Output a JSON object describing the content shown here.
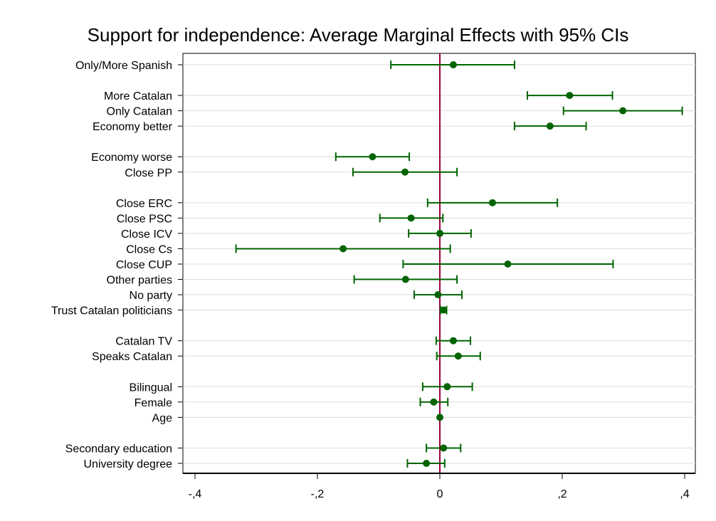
{
  "chart_data": {
    "type": "scatter",
    "title": "Support for independence: Average Marginal Effects with 95% CIs",
    "xlabel": "",
    "ylabel": "",
    "xlim": [
      -0.4,
      0.4
    ],
    "x_ticks": [
      {
        "value": -0.4,
        "label": "-,4"
      },
      {
        "value": -0.2,
        "label": "-,2"
      },
      {
        "value": 0,
        "label": "0"
      },
      {
        "value": 0.2,
        "label": ",2"
      },
      {
        "value": 0.4,
        "label": ",4"
      }
    ],
    "reference_line": 0,
    "grid": "horizontal",
    "colors": {
      "marker": "#006400",
      "reference": "#a0003c",
      "grid": "#dcdcdc",
      "axis": "#000000"
    },
    "rows": [
      {
        "label": "Only/More Spanish",
        "estimate": 0.022,
        "lower": -0.08,
        "upper": 0.122,
        "pos": 0
      },
      {
        "label": "More Catalan",
        "estimate": 0.212,
        "lower": 0.143,
        "upper": 0.282,
        "pos": 2
      },
      {
        "label": "Only Catalan",
        "estimate": 0.299,
        "lower": 0.202,
        "upper": 0.396,
        "pos": 3
      },
      {
        "label": "Economy better",
        "estimate": 0.18,
        "lower": 0.122,
        "upper": 0.239,
        "pos": 4
      },
      {
        "label": "Economy worse",
        "estimate": -0.11,
        "lower": -0.17,
        "upper": -0.05,
        "pos": 6
      },
      {
        "label": "Close PP",
        "estimate": -0.057,
        "lower": -0.142,
        "upper": 0.028,
        "pos": 7
      },
      {
        "label": "Close ERC",
        "estimate": 0.086,
        "lower": -0.02,
        "upper": 0.192,
        "pos": 9
      },
      {
        "label": "Close PSC",
        "estimate": -0.047,
        "lower": -0.098,
        "upper": 0.005,
        "pos": 10
      },
      {
        "label": "Close ICV",
        "estimate": 0.0,
        "lower": -0.051,
        "upper": 0.051,
        "pos": 11
      },
      {
        "label": "Close Cs",
        "estimate": -0.158,
        "lower": -0.333,
        "upper": 0.017,
        "pos": 12
      },
      {
        "label": "Close CUP",
        "estimate": 0.111,
        "lower": -0.06,
        "upper": 0.283,
        "pos": 13
      },
      {
        "label": "Other parties",
        "estimate": -0.056,
        "lower": -0.14,
        "upper": 0.028,
        "pos": 14
      },
      {
        "label": "No party",
        "estimate": -0.003,
        "lower": -0.042,
        "upper": 0.036,
        "pos": 15
      },
      {
        "label": "Trust Catalan politicians",
        "estimate": 0.006,
        "lower": 0.001,
        "upper": 0.011,
        "pos": 16
      },
      {
        "label": "Catalan TV",
        "estimate": 0.022,
        "lower": -0.006,
        "upper": 0.05,
        "pos": 18
      },
      {
        "label": "Speaks Catalan",
        "estimate": 0.03,
        "lower": -0.005,
        "upper": 0.066,
        "pos": 19
      },
      {
        "label": "Bilingual",
        "estimate": 0.012,
        "lower": -0.028,
        "upper": 0.053,
        "pos": 21
      },
      {
        "label": "Female",
        "estimate": -0.01,
        "lower": -0.032,
        "upper": 0.013,
        "pos": 22
      },
      {
        "label": "Age",
        "estimate": 0.0,
        "lower": 0.0,
        "upper": 0.0,
        "pos": 23
      },
      {
        "label": "Secondary education",
        "estimate": 0.006,
        "lower": -0.022,
        "upper": 0.034,
        "pos": 25
      },
      {
        "label": "University degree",
        "estimate": -0.022,
        "lower": -0.053,
        "upper": 0.008,
        "pos": 26
      }
    ]
  }
}
